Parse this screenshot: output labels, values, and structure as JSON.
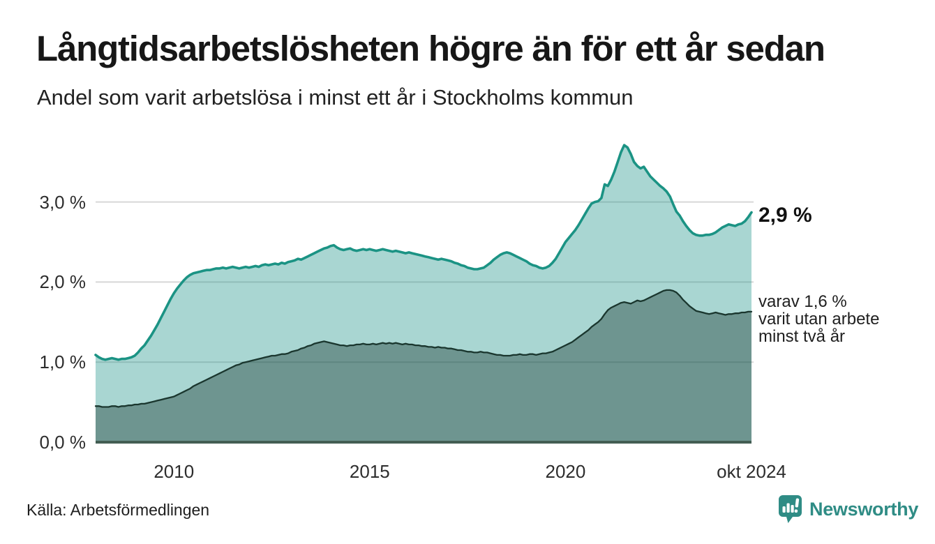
{
  "title": "Långtidsarbetslösheten högre än för ett år sedan",
  "subtitle": "Andel som varit arbetslösa i minst ett år i Stockholms kommun",
  "source": "Källa: Arbetsförmedlingen",
  "branding": {
    "name": "Newsworthy",
    "color": "#2f8c85",
    "icon": "bar-chart-speech-bubble-icon"
  },
  "annotations": {
    "latest_total": "2,9 %",
    "secondary_lines": [
      "varav 1,6 %",
      "varit utan arbete",
      "minst två år"
    ]
  },
  "colors": {
    "line_total": "#1b9384",
    "fill_total": "rgba(29,148,136,0.38)",
    "line_two_years": "#1a362e",
    "fill_two_years": "rgba(22,52,44,0.40)",
    "gridline": "#d7d7d7",
    "axis": "#435e53",
    "text": "#1a1a1a"
  },
  "chart_data": {
    "type": "area",
    "title": "Långtidsarbetslösheten högre än för ett år sedan",
    "subtitle": "Andel som varit arbetslösa i minst ett år i Stockholms kommun",
    "x_unit": "month",
    "x_start": "2008-01",
    "x_end": "2024-10",
    "x_tick_labels": [
      "2010",
      "2015",
      "2020",
      "okt 2024"
    ],
    "x_tick_indices": [
      24,
      84,
      144,
      201
    ],
    "y_tick_values": [
      0,
      1,
      2,
      3
    ],
    "y_tick_labels": [
      "0,0 %",
      "1,0 %",
      "2,0 %",
      "3,0 %"
    ],
    "ylim": [
      0,
      3.9
    ],
    "grid": true,
    "legend_position": "none",
    "series": [
      {
        "name": "Andel arbetslösa minst ett år",
        "latest_label": "2,9 %",
        "values": [
          1.09,
          1.06,
          1.04,
          1.03,
          1.04,
          1.05,
          1.04,
          1.03,
          1.04,
          1.04,
          1.05,
          1.06,
          1.08,
          1.12,
          1.17,
          1.21,
          1.27,
          1.33,
          1.4,
          1.47,
          1.55,
          1.63,
          1.71,
          1.79,
          1.86,
          1.92,
          1.97,
          2.02,
          2.06,
          2.09,
          2.11,
          2.12,
          2.13,
          2.14,
          2.15,
          2.15,
          2.16,
          2.17,
          2.17,
          2.18,
          2.17,
          2.18,
          2.19,
          2.18,
          2.17,
          2.18,
          2.19,
          2.18,
          2.19,
          2.2,
          2.19,
          2.21,
          2.22,
          2.21,
          2.22,
          2.23,
          2.22,
          2.24,
          2.23,
          2.25,
          2.26,
          2.27,
          2.29,
          2.28,
          2.3,
          2.32,
          2.34,
          2.36,
          2.38,
          2.4,
          2.42,
          2.43,
          2.45,
          2.46,
          2.43,
          2.41,
          2.4,
          2.41,
          2.42,
          2.4,
          2.39,
          2.4,
          2.41,
          2.4,
          2.41,
          2.4,
          2.39,
          2.4,
          2.41,
          2.4,
          2.39,
          2.38,
          2.39,
          2.38,
          2.37,
          2.36,
          2.37,
          2.36,
          2.35,
          2.34,
          2.33,
          2.32,
          2.31,
          2.3,
          2.29,
          2.28,
          2.29,
          2.28,
          2.27,
          2.26,
          2.24,
          2.23,
          2.21,
          2.2,
          2.18,
          2.17,
          2.16,
          2.16,
          2.17,
          2.18,
          2.21,
          2.24,
          2.28,
          2.31,
          2.34,
          2.36,
          2.37,
          2.36,
          2.34,
          2.32,
          2.3,
          2.28,
          2.26,
          2.23,
          2.21,
          2.2,
          2.18,
          2.17,
          2.18,
          2.2,
          2.24,
          2.29,
          2.36,
          2.43,
          2.5,
          2.55,
          2.6,
          2.65,
          2.71,
          2.78,
          2.85,
          2.92,
          2.98,
          3.0,
          3.01,
          3.05,
          3.22,
          3.2,
          3.28,
          3.38,
          3.5,
          3.62,
          3.71,
          3.68,
          3.6,
          3.5,
          3.45,
          3.42,
          3.44,
          3.38,
          3.32,
          3.28,
          3.24,
          3.2,
          3.17,
          3.13,
          3.07,
          2.97,
          2.88,
          2.83,
          2.76,
          2.7,
          2.65,
          2.61,
          2.59,
          2.58,
          2.58,
          2.59,
          2.59,
          2.6,
          2.62,
          2.65,
          2.68,
          2.7,
          2.72,
          2.71,
          2.7,
          2.72,
          2.73,
          2.76,
          2.81,
          2.87
        ]
      },
      {
        "name": "varav arbetslösa minst två år",
        "latest_label": "1,6 %",
        "values": [
          0.45,
          0.45,
          0.44,
          0.44,
          0.44,
          0.45,
          0.45,
          0.44,
          0.45,
          0.45,
          0.46,
          0.46,
          0.47,
          0.47,
          0.48,
          0.48,
          0.49,
          0.5,
          0.51,
          0.52,
          0.53,
          0.54,
          0.55,
          0.56,
          0.57,
          0.59,
          0.61,
          0.63,
          0.65,
          0.67,
          0.7,
          0.72,
          0.74,
          0.76,
          0.78,
          0.8,
          0.82,
          0.84,
          0.86,
          0.88,
          0.9,
          0.92,
          0.94,
          0.96,
          0.97,
          0.99,
          1.0,
          1.01,
          1.02,
          1.03,
          1.04,
          1.05,
          1.06,
          1.07,
          1.08,
          1.08,
          1.09,
          1.1,
          1.1,
          1.11,
          1.13,
          1.14,
          1.15,
          1.17,
          1.18,
          1.2,
          1.21,
          1.23,
          1.24,
          1.25,
          1.26,
          1.25,
          1.24,
          1.23,
          1.22,
          1.21,
          1.21,
          1.2,
          1.21,
          1.21,
          1.22,
          1.22,
          1.23,
          1.22,
          1.22,
          1.23,
          1.22,
          1.23,
          1.24,
          1.23,
          1.24,
          1.23,
          1.24,
          1.23,
          1.22,
          1.23,
          1.22,
          1.22,
          1.21,
          1.21,
          1.2,
          1.2,
          1.19,
          1.19,
          1.18,
          1.19,
          1.18,
          1.18,
          1.17,
          1.17,
          1.16,
          1.15,
          1.15,
          1.14,
          1.13,
          1.13,
          1.12,
          1.12,
          1.13,
          1.12,
          1.12,
          1.11,
          1.1,
          1.09,
          1.09,
          1.08,
          1.08,
          1.08,
          1.09,
          1.09,
          1.1,
          1.09,
          1.09,
          1.1,
          1.1,
          1.09,
          1.1,
          1.11,
          1.11,
          1.12,
          1.13,
          1.15,
          1.17,
          1.19,
          1.21,
          1.23,
          1.25,
          1.28,
          1.31,
          1.34,
          1.37,
          1.4,
          1.44,
          1.47,
          1.5,
          1.54,
          1.6,
          1.65,
          1.68,
          1.7,
          1.72,
          1.74,
          1.75,
          1.74,
          1.73,
          1.75,
          1.77,
          1.76,
          1.77,
          1.79,
          1.81,
          1.83,
          1.85,
          1.87,
          1.89,
          1.9,
          1.9,
          1.89,
          1.87,
          1.83,
          1.78,
          1.74,
          1.7,
          1.67,
          1.64,
          1.63,
          1.62,
          1.61,
          1.6,
          1.61,
          1.62,
          1.61,
          1.6,
          1.59,
          1.6,
          1.6,
          1.61,
          1.61,
          1.62,
          1.62,
          1.63,
          1.63
        ]
      }
    ]
  }
}
